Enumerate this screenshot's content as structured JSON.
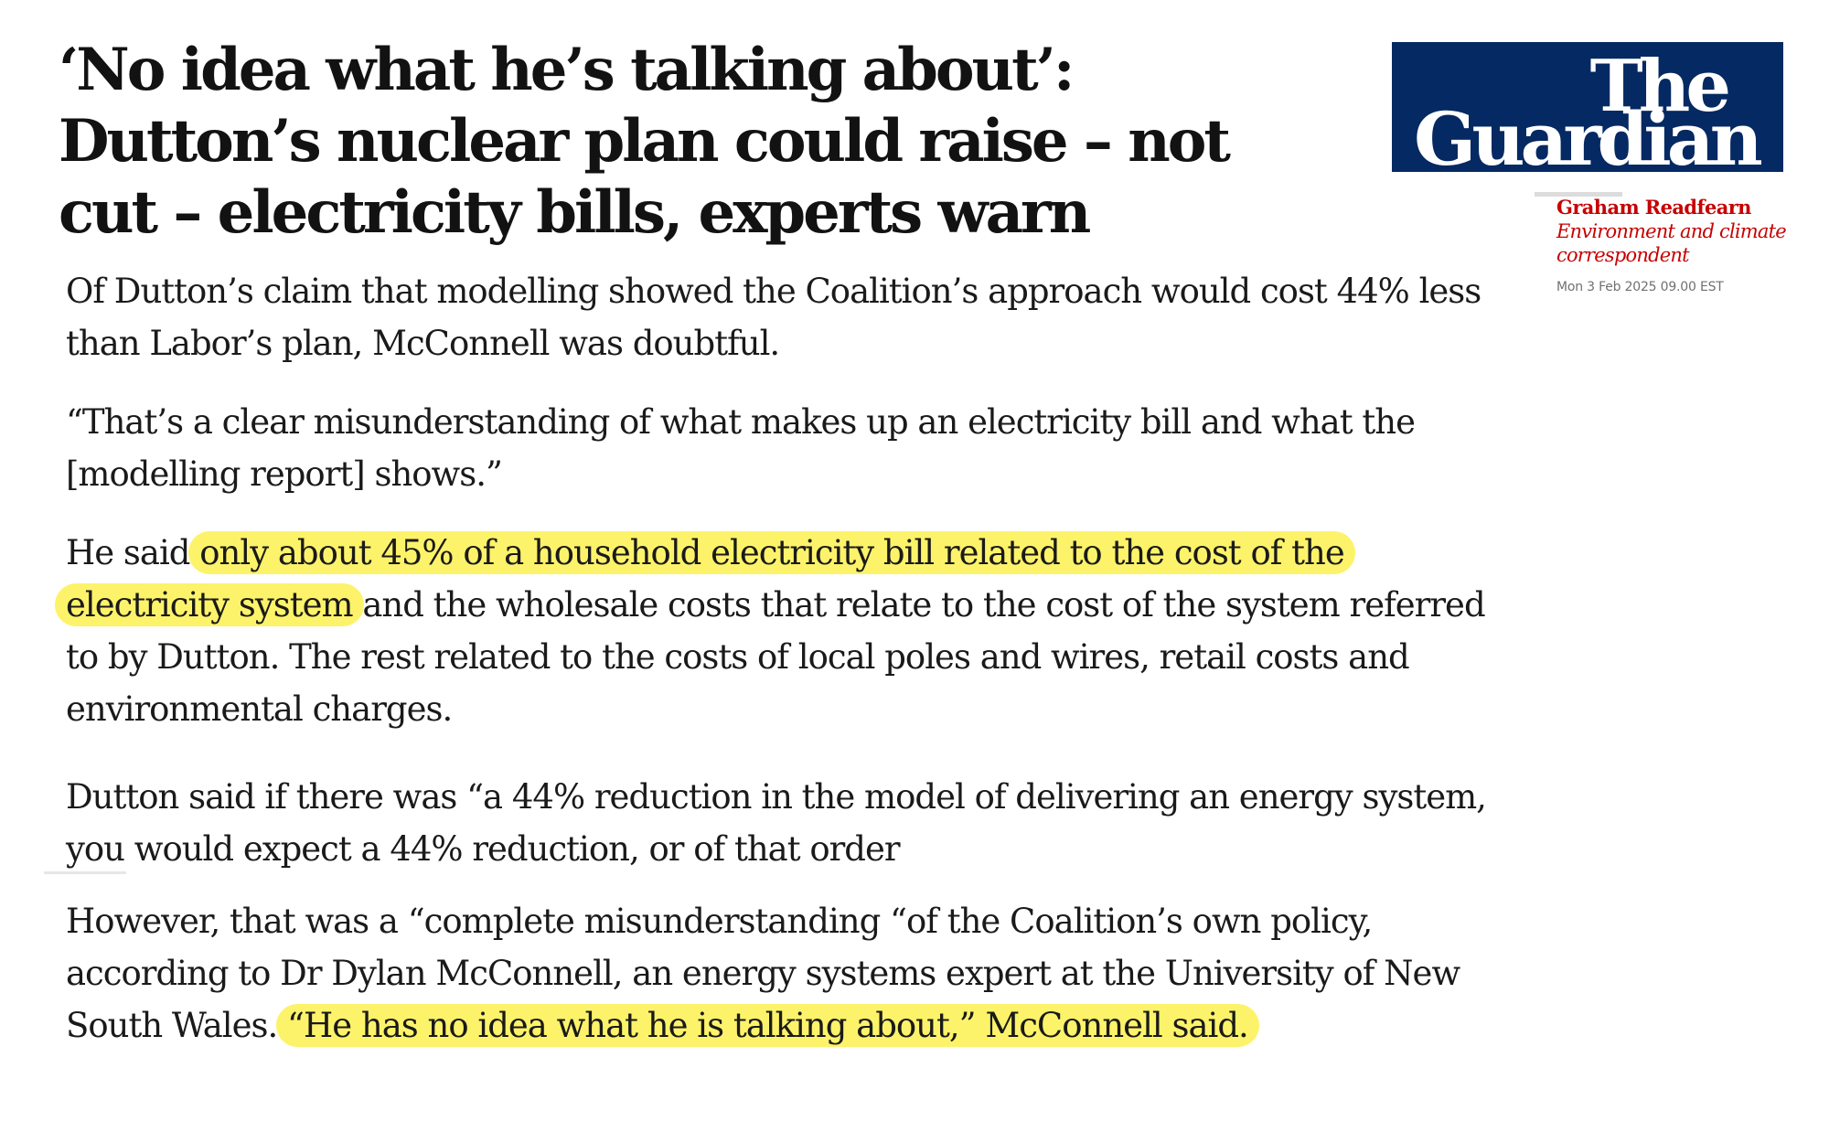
{
  "article": {
    "headline": "‘No idea what he’s talking about’: Dutton’s nuclear plan could raise – not cut – electricity bills, experts warn",
    "masthead": {
      "line1": "The",
      "line2": "Guardian"
    },
    "byline": {
      "author": "Graham Readfearn",
      "role": "Environment and climate correspondent",
      "date": "Mon 3 Feb 2025 09.00 EST"
    },
    "paragraphs": {
      "p1": "Of Dutton’s claim that modelling showed the Coalition’s approach would cost 44% less than Labor’s plan, McConnell was doubtful.",
      "p2": "“That’s a clear misunderstanding of what makes up an electricity bill and what the [modelling report] shows.”",
      "p3_before": "He said ",
      "p3_highlight": "only about 45% of a household electricity bill related to the cost of the electricity system",
      "p3_after": " and the wholesale costs that relate to the cost of the system referred to by Dutton. The rest related to the costs of local poles and wires, retail costs and environmental charges.",
      "p4": "Dutton said if there was “a 44% reduction in the model of delivering an energy system, you would expect a 44% reduction, or of that order",
      "p5_before": "However, that was a “complete misunderstanding “of the Coalition’s own policy, according to Dr Dylan McConnell, an energy systems expert at the University of New South Wales. ",
      "p5_highlight": "“He has no idea what he is talking about,” McConnell said."
    },
    "highlight_color": "#fdf36a",
    "masthead_color": "#052962",
    "byline_color": "#c70000"
  }
}
